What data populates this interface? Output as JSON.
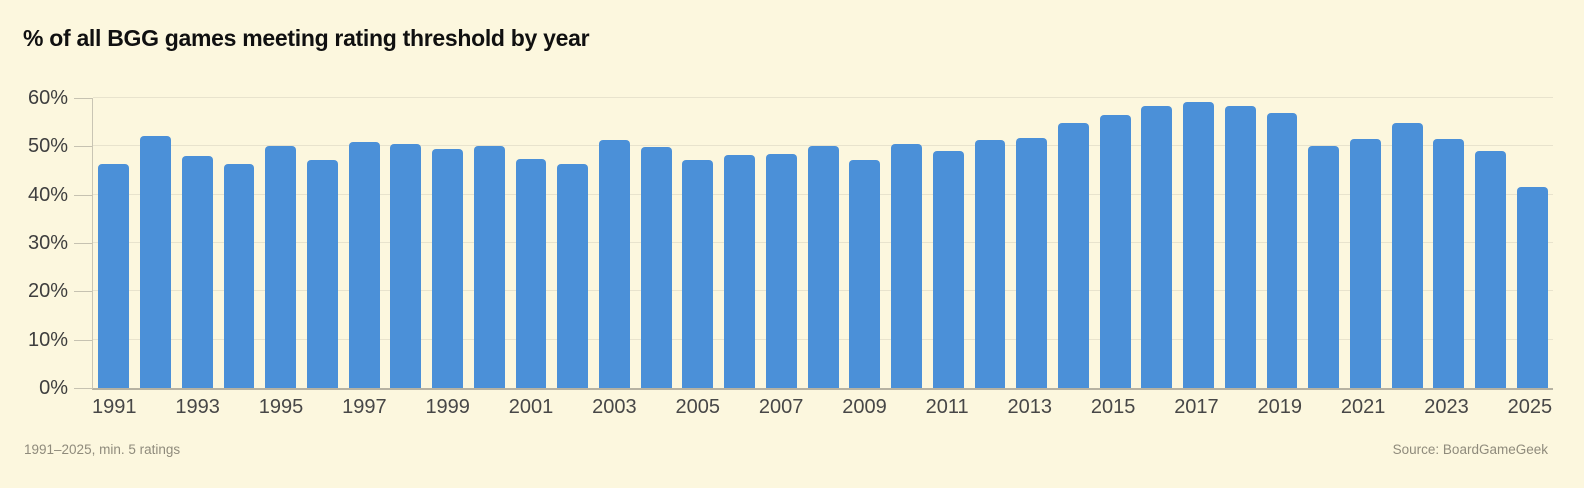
{
  "chart_data": {
    "type": "bar",
    "title": "% of all BGG games meeting rating threshold by year",
    "categories": [
      "1991",
      "1992",
      "1993",
      "1994",
      "1995",
      "1996",
      "1997",
      "1998",
      "1999",
      "2000",
      "2001",
      "2002",
      "2003",
      "2004",
      "2005",
      "2006",
      "2007",
      "2008",
      "2009",
      "2010",
      "2011",
      "2012",
      "2013",
      "2014",
      "2015",
      "2016",
      "2017",
      "2018",
      "2019",
      "2020",
      "2021",
      "2022",
      "2023",
      "2024",
      "2025"
    ],
    "values": [
      46.3,
      52.2,
      48.0,
      46.3,
      50.1,
      47.2,
      50.9,
      50.4,
      49.4,
      50.0,
      47.4,
      46.4,
      51.3,
      49.8,
      47.1,
      48.3,
      48.5,
      50.1,
      47.2,
      50.4,
      49.1,
      51.3,
      51.8,
      54.9,
      56.5,
      58.3,
      59.2,
      58.3,
      57.0,
      50.1,
      51.5,
      54.9,
      51.6,
      49.1,
      41.5
    ],
    "ylim": [
      0,
      60
    ],
    "yticks": [
      {
        "value": 0,
        "label": "0%"
      },
      {
        "value": 10,
        "label": "10%"
      },
      {
        "value": 20,
        "label": "20%"
      },
      {
        "value": 30,
        "label": "30%"
      },
      {
        "value": 40,
        "label": "40%"
      },
      {
        "value": 50,
        "label": "50%"
      },
      {
        "value": 60,
        "label": "60%"
      }
    ],
    "x_labeled_categories": [
      "1991",
      "1993",
      "1995",
      "1997",
      "1999",
      "2001",
      "2003",
      "2005",
      "2007",
      "2009",
      "2011",
      "2013",
      "2015",
      "2017",
      "2019",
      "2021",
      "2023",
      "2025"
    ],
    "grid": "horizontal",
    "legend": "none",
    "bar_color": "#4b90d8",
    "background_color": "#fcf7de",
    "footnote_left": "1991–2025, min. 5 ratings",
    "footnote_right": "Source: BoardGameGeek"
  }
}
